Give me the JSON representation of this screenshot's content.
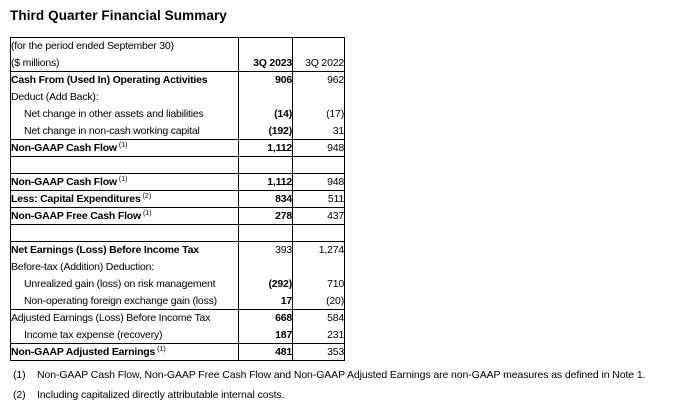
{
  "title": "Third Quarter Financial Summary",
  "table": {
    "caption_line1": "(for the period ended September 30)",
    "caption_line2": "($ millions)",
    "columns": [
      "3Q 2023",
      "3Q 2022"
    ],
    "rows": [
      {
        "blank": false,
        "label": "Cash From (Used In) Operating Activities",
        "sup": "",
        "label_bold": true,
        "indent": false,
        "v1": "906",
        "v1_bold": true,
        "v2": "962",
        "border_bottom": false
      },
      {
        "blank": false,
        "label": "Deduct (Add Back):",
        "sup": "",
        "label_bold": false,
        "indent": false,
        "v1": "",
        "v1_bold": false,
        "v2": "",
        "border_bottom": false
      },
      {
        "blank": false,
        "label": "Net change in other assets and liabilities",
        "sup": "",
        "label_bold": false,
        "indent": true,
        "v1": "(14)",
        "v1_bold": true,
        "v2": "(17)",
        "border_bottom": false
      },
      {
        "blank": false,
        "label": "Net change in non-cash working capital",
        "sup": "",
        "label_bold": false,
        "indent": true,
        "v1": "(192)",
        "v1_bold": true,
        "v2": "31",
        "border_bottom": true
      },
      {
        "blank": false,
        "label": "Non-GAAP Cash Flow",
        "sup": "(1)",
        "label_bold": true,
        "indent": false,
        "v1": "1,112",
        "v1_bold": true,
        "v2": "948",
        "border_bottom": true
      },
      {
        "blank": true,
        "label": "",
        "sup": "",
        "label_bold": false,
        "indent": false,
        "v1": "",
        "v1_bold": false,
        "v2": "",
        "border_bottom": true
      },
      {
        "blank": false,
        "label": "Non-GAAP Cash Flow",
        "sup": "(1)",
        "label_bold": true,
        "indent": false,
        "v1": "1,112",
        "v1_bold": true,
        "v2": "948",
        "border_bottom": true
      },
      {
        "blank": false,
        "label": "Less: Capital Expenditures",
        "sup": "(2)",
        "label_bold": true,
        "indent": false,
        "v1": "834",
        "v1_bold": true,
        "v2": "511",
        "border_bottom": true
      },
      {
        "blank": false,
        "label": "Non-GAAP Free Cash Flow",
        "sup": "(1)",
        "label_bold": true,
        "indent": false,
        "v1": "278",
        "v1_bold": true,
        "v2": "437",
        "border_bottom": true
      },
      {
        "blank": true,
        "label": "",
        "sup": "",
        "label_bold": false,
        "indent": false,
        "v1": "",
        "v1_bold": false,
        "v2": "",
        "border_bottom": true
      },
      {
        "blank": false,
        "label": "Net Earnings (Loss) Before Income Tax",
        "sup": "",
        "label_bold": true,
        "indent": false,
        "v1": "393",
        "v1_bold": false,
        "v2": "1,274",
        "border_bottom": false
      },
      {
        "blank": false,
        "label": "Before-tax (Addition) Deduction:",
        "sup": "",
        "label_bold": false,
        "indent": false,
        "v1": "",
        "v1_bold": false,
        "v2": "",
        "border_bottom": false
      },
      {
        "blank": false,
        "label": "Unrealized gain (loss) on risk management",
        "sup": "",
        "label_bold": false,
        "indent": true,
        "v1": "(292)",
        "v1_bold": true,
        "v2": "710",
        "border_bottom": false
      },
      {
        "blank": false,
        "label": "Non-operating foreign exchange gain (loss)",
        "sup": "",
        "label_bold": false,
        "indent": true,
        "v1": "17",
        "v1_bold": true,
        "v2": "(20)",
        "border_bottom": true
      },
      {
        "blank": false,
        "label": "Adjusted Earnings (Loss) Before Income Tax",
        "sup": "",
        "label_bold": false,
        "indent": false,
        "v1": "668",
        "v1_bold": true,
        "v2": "584",
        "border_bottom": false
      },
      {
        "blank": false,
        "label": "Income tax expense (recovery)",
        "sup": "",
        "label_bold": false,
        "indent": true,
        "v1": "187",
        "v1_bold": true,
        "v2": "231",
        "border_bottom": true
      },
      {
        "blank": false,
        "label": "Non-GAAP Adjusted Earnings",
        "sup": "(1)",
        "label_bold": true,
        "indent": false,
        "v1": "481",
        "v1_bold": true,
        "v2": "353",
        "border_bottom": false
      }
    ]
  },
  "footnotes": [
    {
      "num": "(1)",
      "text": "Non-GAAP Cash Flow, Non-GAAP Free Cash Flow and Non-GAAP Adjusted Earnings are non-GAAP measures as defined in Note 1."
    },
    {
      "num": "(2)",
      "text": "Including capitalized directly attributable internal costs."
    }
  ]
}
